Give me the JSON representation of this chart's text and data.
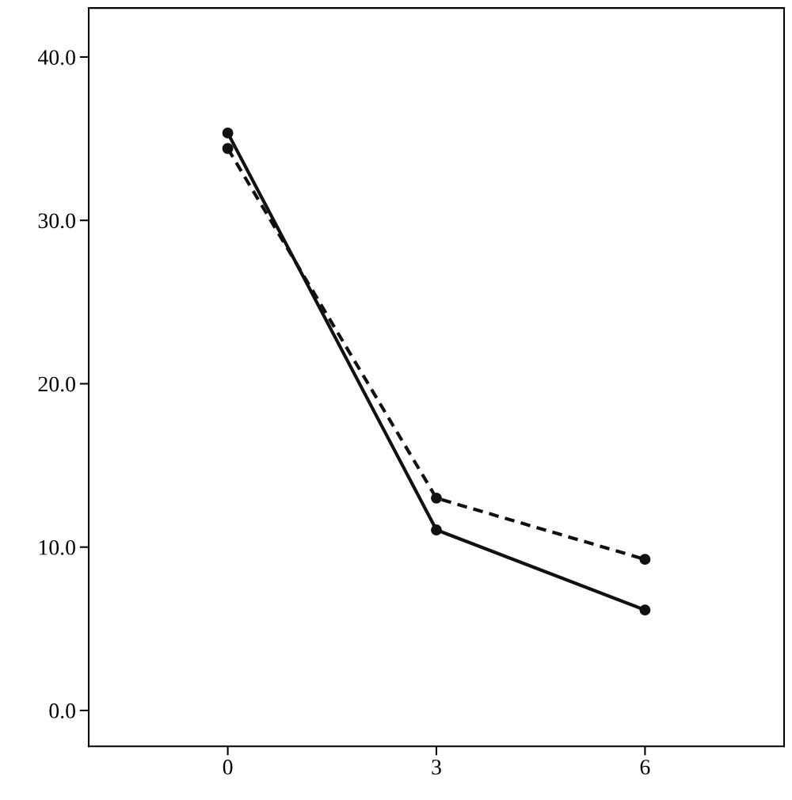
{
  "chart_data": {
    "type": "line",
    "x": [
      0,
      3,
      6
    ],
    "series": [
      {
        "color": "#111111",
        "values": [
          35.35,
          11.05,
          6.15
        ],
        "line_style": "solid"
      },
      {
        "color": "#111111",
        "values": [
          34.4,
          13.0,
          9.25
        ],
        "line_style": "dashed"
      }
    ],
    "marker": "circle",
    "xlim": [
      -2,
      8
    ],
    "xticks": [
      0,
      3,
      6
    ],
    "ylim": [
      -2.2,
      43
    ],
    "yticks": [
      {
        "value": 0,
        "label": "0.0"
      },
      {
        "value": 10,
        "label": "10.0"
      },
      {
        "value": 20,
        "label": "20.0"
      },
      {
        "value": 30,
        "label": "30.0"
      },
      {
        "value": 40,
        "label": "40.0"
      }
    ],
    "grid": false,
    "legend": false
  }
}
